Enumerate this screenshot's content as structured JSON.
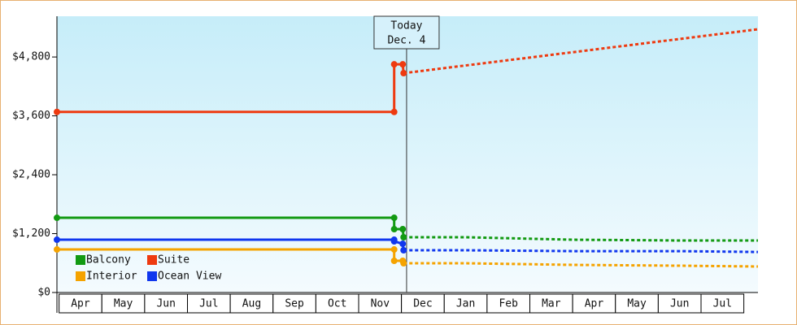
{
  "chart_data": {
    "type": "line",
    "categories": [
      "Apr",
      "May",
      "Jun",
      "Jul",
      "Aug",
      "Sep",
      "Oct",
      "Nov",
      "Dec",
      "Jan",
      "Feb",
      "Mar",
      "Apr",
      "May",
      "Jun",
      "Jul"
    ],
    "x": [
      -0.05,
      7.83,
      7.83,
      8.03,
      8.05,
      9.5,
      12,
      14.5,
      16.33
    ],
    "xlim": [
      -0.05,
      16.33
    ],
    "ylim": [
      0,
      5630
    ],
    "yticks": [
      {
        "value": 0,
        "label": "$0"
      },
      {
        "value": 1200,
        "label": "$1,200"
      },
      {
        "value": 2400,
        "label": "$2,400"
      },
      {
        "value": 3600,
        "label": "$3,600"
      },
      {
        "value": 4800,
        "label": "$4,800"
      }
    ],
    "today": {
      "x": 8.12,
      "label": [
        "Today",
        "Dec. 4"
      ]
    },
    "series": [
      {
        "name": "Balcony",
        "color": "#129a12",
        "values": [
          1523,
          1523,
          1291,
          1291,
          1126,
          1126,
          1076,
          1060,
          1060
        ]
      },
      {
        "name": "Suite",
        "color": "#ee3a10",
        "values": [
          3680,
          3680,
          4650,
          4650,
          4470,
          4627,
          4897,
          5167,
          5365
        ]
      },
      {
        "name": "Interior",
        "color": "#f5a300",
        "values": [
          877,
          877,
          646,
          646,
          596,
          596,
          563,
          546,
          530
        ]
      },
      {
        "name": "Ocean View",
        "color": "#1037ee",
        "values": [
          1076,
          1076,
          1043,
          993,
          861,
          861,
          843,
          843,
          826
        ]
      }
    ]
  }
}
